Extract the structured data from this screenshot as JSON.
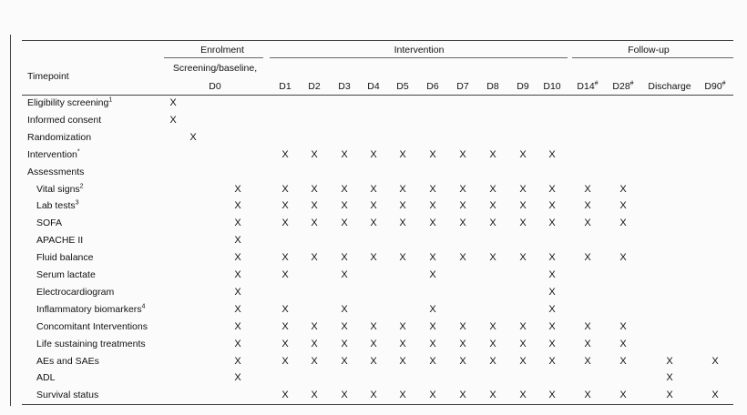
{
  "table": {
    "groups": {
      "enrolment": "Enrolment",
      "intervention": "Intervention",
      "followup": "Follow-up"
    },
    "timepoint_label": "Timepoint",
    "screening_line1": "Screening/baseline,",
    "screening_line2": "D0",
    "columns": [
      "D1",
      "D2",
      "D3",
      "D4",
      "D5",
      "D6",
      "D7",
      "D8",
      "D9",
      "D10",
      "D14#",
      "D28#",
      "Discharge",
      "D90#"
    ],
    "rows": [
      {
        "label": "Eligibility screening",
        "sup": "1",
        "indent": false,
        "marks": {
          "scr": true
        }
      },
      {
        "label": "Informed consent",
        "sup": "",
        "indent": false,
        "marks": {
          "scr": true
        }
      },
      {
        "label": "Randomization",
        "sup": "",
        "indent": false,
        "marks": {
          "rand": true
        }
      },
      {
        "label": "Intervention",
        "sup": "*",
        "indent": false,
        "marks": {
          "cols": [
            0,
            1,
            2,
            3,
            4,
            5,
            6,
            7,
            8,
            9
          ]
        }
      },
      {
        "label": "Assessments",
        "sup": "",
        "indent": false,
        "marks": {}
      },
      {
        "label": "Vital signs",
        "sup": "2",
        "indent": true,
        "marks": {
          "d0": true,
          "cols": [
            0,
            1,
            2,
            3,
            4,
            5,
            6,
            7,
            8,
            9,
            10,
            11
          ]
        }
      },
      {
        "label": "Lab tests",
        "sup": "3",
        "indent": true,
        "marks": {
          "d0": true,
          "cols": [
            0,
            1,
            2,
            3,
            4,
            5,
            6,
            7,
            8,
            9,
            10,
            11
          ]
        }
      },
      {
        "label": "SOFA",
        "sup": "",
        "indent": true,
        "marks": {
          "d0": true,
          "cols": [
            0,
            1,
            2,
            3,
            4,
            5,
            6,
            7,
            8,
            9,
            10,
            11
          ]
        }
      },
      {
        "label": "APACHE II",
        "sup": "",
        "indent": true,
        "marks": {
          "d0": true
        }
      },
      {
        "label": "Fluid balance",
        "sup": "",
        "indent": true,
        "marks": {
          "d0": true,
          "cols": [
            0,
            1,
            2,
            3,
            4,
            5,
            6,
            7,
            8,
            9,
            10,
            11
          ]
        }
      },
      {
        "label": "Serum lactate",
        "sup": "",
        "indent": true,
        "marks": {
          "d0": true,
          "cols": [
            0,
            2,
            5,
            9
          ]
        }
      },
      {
        "label": "Electrocardiogram",
        "sup": "",
        "indent": true,
        "marks": {
          "d0": true,
          "cols": [
            9
          ]
        }
      },
      {
        "label": "Inflammatory biomarkers",
        "sup": "4",
        "indent": true,
        "marks": {
          "d0": true,
          "cols": [
            0,
            2,
            5,
            9
          ]
        }
      },
      {
        "label": "Concomitant Interventions",
        "sup": "",
        "indent": true,
        "marks": {
          "d0": true,
          "cols": [
            0,
            1,
            2,
            3,
            4,
            5,
            6,
            7,
            8,
            9,
            10,
            11
          ]
        }
      },
      {
        "label": "Life sustaining treatments",
        "sup": "",
        "indent": true,
        "marks": {
          "d0": true,
          "cols": [
            0,
            1,
            2,
            3,
            4,
            5,
            6,
            7,
            8,
            9,
            10,
            11
          ]
        }
      },
      {
        "label": "AEs and SAEs",
        "sup": "",
        "indent": true,
        "marks": {
          "d0": true,
          "cols": [
            0,
            1,
            2,
            3,
            4,
            5,
            6,
            7,
            8,
            9,
            10,
            11,
            12,
            13
          ]
        }
      },
      {
        "label": "ADL",
        "sup": "",
        "indent": true,
        "marks": {
          "d0": true,
          "cols": [
            12
          ]
        }
      },
      {
        "label": "Survival status",
        "sup": "",
        "indent": true,
        "marks": {
          "cols": [
            0,
            1,
            2,
            3,
            4,
            5,
            6,
            7,
            8,
            9,
            10,
            11,
            12,
            13
          ]
        }
      }
    ],
    "mark_symbol": "X"
  }
}
